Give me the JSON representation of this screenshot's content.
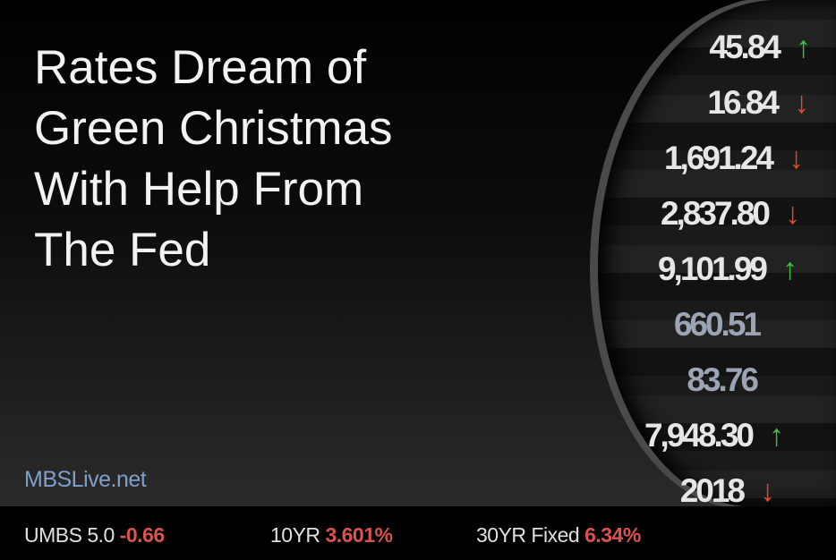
{
  "headline": "Rates Dream of Green Christmas With Help From The Fed",
  "site": "MBSLive.net",
  "magnifier_rows": [
    {
      "value": "45.84",
      "trend": "up"
    },
    {
      "value": "16.84",
      "trend": "down"
    },
    {
      "value": "1,691.24",
      "trend": "down"
    },
    {
      "value": "2,837.80",
      "trend": "down"
    },
    {
      "value": "9,101.99",
      "trend": "up"
    },
    {
      "value": "660.51",
      "trend": "none"
    },
    {
      "value": "83.76",
      "trend": "none"
    },
    {
      "value": "7,948.30",
      "trend": "up"
    },
    {
      "value": "2018",
      "trend": "down"
    }
  ],
  "ticker": [
    {
      "label": "UMBS 5.0",
      "value": "-0.66"
    },
    {
      "label": "10YR",
      "value": "3.601%"
    },
    {
      "label": "30YR Fixed",
      "value": "6.34%"
    }
  ],
  "colors": {
    "up": "#3fbf3f",
    "down": "#e04a2a",
    "ticker_value": "#d9534f",
    "site": "#7f9fc8"
  }
}
